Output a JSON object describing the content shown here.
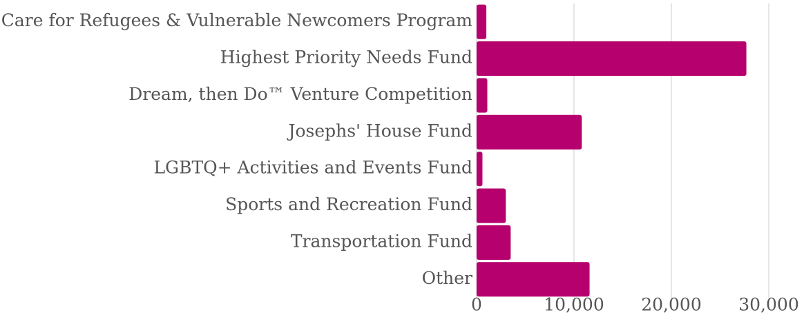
{
  "chart_data": {
    "type": "barh",
    "categories": [
      "Care for Refugees & Vulnerable Newcomers Program",
      "Highest Priority Needs Fund",
      "Dream, then Do™ Venture Competition",
      "Josephs' House Fund",
      "LGBTQ+ Activities and Events Fund",
      "Sports and Recreation Fund",
      "Transportation Fund",
      "Other"
    ],
    "values": [
      1000,
      27700,
      1100,
      10800,
      600,
      3000,
      3500,
      11600
    ],
    "color": "#b5006e",
    "xlim": [
      0,
      30000
    ],
    "xticks": [
      0,
      {
        "value": 10000,
        "label": "10,000"
      },
      {
        "value": 20000,
        "label": "20,000"
      },
      {
        "value": 30000,
        "label": "30,000"
      }
    ],
    "grid": true
  }
}
